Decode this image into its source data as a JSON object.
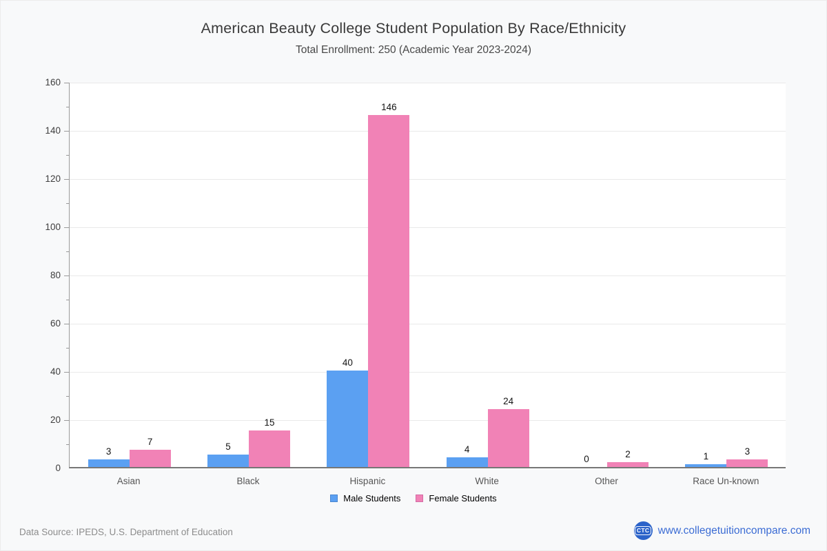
{
  "chart_data": {
    "type": "bar",
    "title": "American Beauty College Student Population By Race/Ethnicity",
    "subtitle": "Total Enrollment: 250 (Academic Year 2023-2024)",
    "categories": [
      "Asian",
      "Black",
      "Hispanic",
      "White",
      "Other",
      "Race Un-known"
    ],
    "series": [
      {
        "name": "Male Students",
        "color": "#5ba0f2",
        "border_color": "#4a86cf",
        "values": [
          3,
          5,
          40,
          4,
          0,
          1
        ]
      },
      {
        "name": "Female Students",
        "color": "#f182b6",
        "border_color": "#d36ba4",
        "values": [
          7,
          15,
          146,
          24,
          2,
          3
        ]
      }
    ],
    "xlabel": "",
    "ylabel": "",
    "ylim": [
      0,
      160
    ],
    "ytick_step": 20,
    "yminor_step": 10,
    "ytick_labels": [
      "0",
      "20",
      "40",
      "60",
      "80",
      "100",
      "120",
      "140",
      "160"
    ],
    "grid": true,
    "legend_position": "bottom",
    "bar_value_labels": true
  },
  "footer": {
    "source": "Data Source: IPEDS, U.S. Department of Education",
    "logo_text": "CTC",
    "website": "www.collegetuitioncompare.com",
    "link_color": "#3b6cd4"
  }
}
